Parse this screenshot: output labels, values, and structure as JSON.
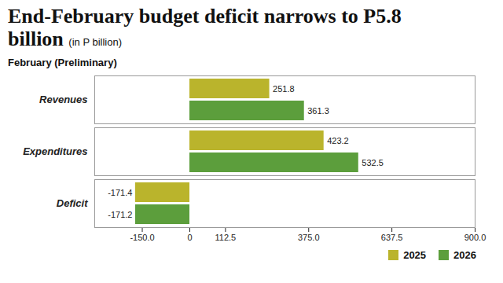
{
  "chart_data": {
    "type": "bar",
    "orientation": "horizontal",
    "title": "End-February budget deficit narrows to P5.8 billion",
    "units": "(in P billion)",
    "subtitle": "February (Preliminary)",
    "categories": [
      "Revenues",
      "Expenditures",
      "Deficit"
    ],
    "series": [
      {
        "name": "2025",
        "color": "#bab42c",
        "values": [
          251.8,
          423.2,
          -171.4
        ]
      },
      {
        "name": "2026",
        "color": "#5c9e3c",
        "values": [
          361.3,
          532.5,
          -171.2
        ]
      }
    ],
    "xlim": [
      -300,
      900
    ],
    "xticks": [
      {
        "value": -150,
        "label": "-150.0"
      },
      0,
      112.5,
      {
        "value": 375,
        "label": "375.0"
      },
      637.5,
      {
        "value": 900,
        "label": "900.0"
      }
    ],
    "data_labels": true,
    "grid": false,
    "legend": "bottom-right"
  }
}
